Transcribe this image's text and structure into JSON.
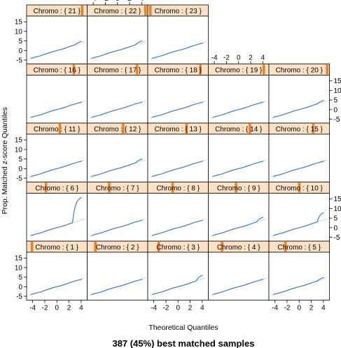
{
  "chart_data": {
    "type": "line",
    "title": "387 (45%) best matched samples",
    "xlabel": "Theoretical Quantiles",
    "ylabel": "Prop. Matched z-score Quantiles",
    "xlim": [
      -5,
      5
    ],
    "ylim": [
      -7,
      18
    ],
    "x_ticks": [
      -4,
      -2,
      0,
      2,
      4
    ],
    "y_ticks": [
      -5,
      0,
      5,
      10,
      15
    ],
    "x_tick_labels": [
      "-4",
      "-2",
      "0",
      "2",
      "4"
    ],
    "y_tick_labels": [
      "-5",
      "0",
      "5",
      "10",
      "15"
    ],
    "strip_prefix": "Chromo : {",
    "strip_suffix": "}",
    "grid": false,
    "colors": {
      "line": "#3d7fc4",
      "reference": "#c0c8d0",
      "strip_bg": "#fde1c6",
      "strip_marker": "#f07f1c",
      "frame": "#000000"
    },
    "panels": [
      {
        "chromo": "1",
        "label": "Chromo : { 1 }",
        "row": 0,
        "col": 0,
        "marker": 0.05,
        "tail": 0.0
      },
      {
        "chromo": "2",
        "label": "Chromo : { 2 }",
        "row": 0,
        "col": 1,
        "marker": 0.1,
        "tail": 0.0
      },
      {
        "chromo": "3",
        "label": "Chromo : { 3 }",
        "row": 0,
        "col": 2,
        "marker": 0.15,
        "tail": 2.0
      },
      {
        "chromo": "4",
        "label": "Chromo : { 4 }",
        "row": 0,
        "col": 3,
        "marker": 0.2,
        "tail": 0.0
      },
      {
        "chromo": "5",
        "label": "Chromo : { 5 }",
        "row": 0,
        "col": 4,
        "marker": 0.25,
        "tail": 0.8
      },
      {
        "chromo": "6",
        "label": "Chromo : { 6 }",
        "row": 1,
        "col": 0,
        "marker": 0.3,
        "tail": 12.0
      },
      {
        "chromo": "7",
        "label": "Chromo : { 7 }",
        "row": 1,
        "col": 1,
        "marker": 0.35,
        "tail": 0.0
      },
      {
        "chromo": "8",
        "label": "Chromo : { 8 }",
        "row": 1,
        "col": 2,
        "marker": 0.4,
        "tail": 0.0
      },
      {
        "chromo": "9",
        "label": "Chromo : { 9 }",
        "row": 1,
        "col": 3,
        "marker": 0.45,
        "tail": 1.5
      },
      {
        "chromo": "10",
        "label": "Chromo : { 10 }",
        "row": 1,
        "col": 4,
        "marker": 0.5,
        "tail": 4.0
      },
      {
        "chromo": "11",
        "label": "Chromo : { 11 }",
        "row": 2,
        "col": 0,
        "marker": 0.55,
        "tail": 0.0
      },
      {
        "chromo": "12",
        "label": "Chromo : { 12 }",
        "row": 2,
        "col": 1,
        "marker": 0.6,
        "tail": 1.0
      },
      {
        "chromo": "13",
        "label": "Chromo : { 13 }",
        "row": 2,
        "col": 2,
        "marker": 0.65,
        "tail": 0.0
      },
      {
        "chromo": "14",
        "label": "Chromo : { 14 }",
        "row": 2,
        "col": 3,
        "marker": 0.7,
        "tail": 0.0
      },
      {
        "chromo": "15",
        "label": "Chromo : { 15 }",
        "row": 2,
        "col": 4,
        "marker": 0.75,
        "tail": 0.0
      },
      {
        "chromo": "16",
        "label": "Chromo : { 16 }",
        "row": 3,
        "col": 0,
        "marker": 0.8,
        "tail": 0.0
      },
      {
        "chromo": "17",
        "label": "Chromo : { 17 }",
        "row": 3,
        "col": 1,
        "marker": 0.85,
        "tail": 0.0
      },
      {
        "chromo": "18",
        "label": "Chromo : { 18 }",
        "row": 3,
        "col": 2,
        "marker": 0.9,
        "tail": 0.0
      },
      {
        "chromo": "19",
        "label": "Chromo : { 19 }",
        "row": 3,
        "col": 3,
        "marker": 0.95,
        "tail": 0.0
      },
      {
        "chromo": "20",
        "label": "Chromo : { 20 }",
        "row": 3,
        "col": 4,
        "marker": 1.0,
        "tail": 0.8
      },
      {
        "chromo": "21",
        "label": "Chromo : { 21 }",
        "row": 4,
        "col": 0,
        "marker": 0.95,
        "tail": 0.8
      },
      {
        "chromo": "22",
        "label": "Chromo : { 22 }",
        "row": 4,
        "col": 1,
        "marker": 1.0,
        "tail": 1.0
      },
      {
        "chromo": "23",
        "label": "Chromo : { 23 }",
        "row": 4,
        "col": 2,
        "marker": 0.0,
        "tail": 0.0
      }
    ]
  }
}
